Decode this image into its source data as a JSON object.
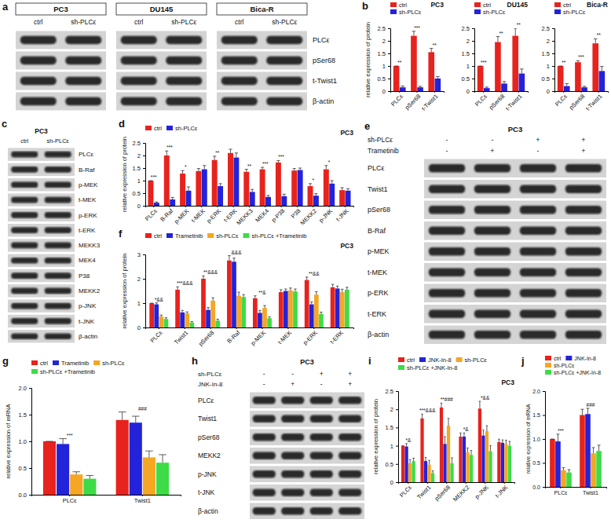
{
  "chart_data": [
    {
      "panel": "b",
      "type": "bar",
      "title": "PC3",
      "y_label": "relative expression of protein",
      "categories": [
        "PLCε",
        "pSer68",
        "t-Twist1"
      ],
      "series": [
        {
          "name": "ctrl",
          "color": "#e8221d",
          "values": [
            1.0,
            2.2,
            1.55
          ],
          "errors": [
            0,
            0.18,
            0.15
          ]
        },
        {
          "name": "sh-PLCε",
          "color": "#2323d9",
          "values": [
            0.15,
            0.15,
            0.5
          ],
          "errors": [
            0.05,
            0.04,
            0.08
          ]
        }
      ],
      "ylim": [
        0,
        2.5
      ],
      "yticks": [
        0,
        0.5,
        1,
        1.5,
        2,
        2.5
      ],
      "grid": false,
      "legend": "top-left",
      "annotations": [
        {
          "category": "PLCε",
          "text": "**"
        },
        {
          "category": "pSer68",
          "text": "***"
        },
        {
          "category": "t-Twist1",
          "text": "**"
        }
      ]
    },
    {
      "type": "bar",
      "title": "DU145",
      "categories": [
        "PLCε",
        "pSer68",
        "t-Twist1"
      ],
      "series": [
        {
          "name": "ctrl",
          "color": "#e8221d",
          "values": [
            1.0,
            1.95,
            2.2
          ],
          "errors": [
            0,
            0.22,
            0.3
          ]
        },
        {
          "name": "sh-PLCε",
          "color": "#2323d9",
          "values": [
            0.12,
            0.3,
            0.7
          ],
          "errors": [
            0.04,
            0.08,
            0.18
          ]
        }
      ],
      "ylim": [
        0,
        2.5
      ],
      "yticks": [
        0,
        0.5,
        1,
        1.5,
        2,
        2.5
      ],
      "grid": false,
      "legend": "top-left",
      "annotations": [
        {
          "category": "PLCε",
          "text": "***"
        },
        {
          "category": "pSer68",
          "text": "**"
        },
        {
          "category": "t-Twist1",
          "text": "**"
        }
      ]
    },
    {
      "type": "bar",
      "title": "Bica-R",
      "categories": [
        "PLCε",
        "pSer68",
        "t-Twist1"
      ],
      "series": [
        {
          "name": "ctrl",
          "color": "#e8221d",
          "values": [
            1.0,
            1.15,
            1.9
          ],
          "errors": [
            0,
            0.06,
            0.18
          ]
        },
        {
          "name": "sh-PLCε",
          "color": "#2323d9",
          "values": [
            0.2,
            0.15,
            0.8
          ],
          "errors": [
            0.1,
            0.04,
            0.18
          ]
        }
      ],
      "ylim": [
        0,
        2.5
      ],
      "yticks": [
        0,
        0.5,
        1,
        1.5,
        2,
        2.5
      ],
      "grid": false,
      "legend": "top-left",
      "annotations": [
        {
          "category": "PLCε",
          "text": "**"
        },
        {
          "category": "pSer68",
          "text": "***"
        },
        {
          "category": "t-Twist1",
          "text": "**"
        }
      ]
    },
    {
      "panel": "d",
      "type": "bar",
      "title": "PC3",
      "y_label": "relative expression of protein",
      "categories": [
        "PLCε",
        "B-Raf",
        "p-MEK",
        "t-MEK",
        "p-ERK",
        "t-ERK",
        "MEKK3",
        "MEK4",
        "p-P38",
        "P38",
        "MEKK2",
        "p-JNK",
        "t-JNK"
      ],
      "series": [
        {
          "name": "ctrl",
          "color": "#e8221d",
          "values": [
            1.0,
            2.0,
            1.28,
            1.38,
            1.82,
            2.1,
            1.35,
            1.45,
            1.72,
            1.4,
            0.78,
            1.45,
            0.62
          ],
          "errors": [
            0,
            0.18,
            0.12,
            0.1,
            0.15,
            0.15,
            0.1,
            0.08,
            0.08,
            0.08,
            0.1,
            0.15,
            0.1
          ]
        },
        {
          "name": "sh-PLCε",
          "color": "#2323d9",
          "values": [
            0.12,
            0.25,
            0.6,
            1.45,
            0.78,
            1.92,
            0.55,
            0.35,
            0.38,
            1.42,
            0.4,
            0.88,
            0.6
          ],
          "errors": [
            0.03,
            0.08,
            0.15,
            0.15,
            0.1,
            0.18,
            0.1,
            0.06,
            0.08,
            0.08,
            0.08,
            0.12,
            0.08
          ]
        }
      ],
      "ylim": [
        0,
        2.5
      ],
      "yticks": [
        0,
        0.5,
        1,
        1.5,
        2,
        2.5
      ],
      "grid": false,
      "legend": "top-left",
      "annotations": [
        {
          "category": "PLCε",
          "text": "***"
        },
        {
          "category": "B-Raf",
          "text": "***"
        },
        {
          "category": "p-MEK",
          "text": "*"
        },
        {
          "category": "p-ERK",
          "text": "**"
        },
        {
          "category": "MEKK3",
          "text": "**"
        },
        {
          "category": "MEK4",
          "text": "***"
        },
        {
          "category": "p-P38",
          "text": "***"
        },
        {
          "category": "MEKK2",
          "text": "*"
        },
        {
          "category": "p-JNK",
          "text": "*"
        }
      ]
    },
    {
      "panel": "f",
      "type": "bar",
      "title": "PC3",
      "y_label": "relative expression of protein",
      "categories": [
        "PLCε",
        "Twist1",
        "pSer68",
        "B-Raf",
        "p-MEK",
        "t-MEK",
        "p-ERK",
        "t-ERK"
      ],
      "series": [
        {
          "name": "ctrl",
          "color": "#e8221d",
          "values": [
            1.0,
            1.55,
            2.0,
            2.75,
            1.2,
            1.45,
            1.95,
            1.65
          ],
          "errors": [
            0,
            0.12,
            0.12,
            0.2,
            0.1,
            0.1,
            0.12,
            0.12
          ]
        },
        {
          "name": "Trametinib",
          "color": "#2323d9",
          "values": [
            0.95,
            0.62,
            0.72,
            2.7,
            0.6,
            1.5,
            0.95,
            1.6
          ],
          "errors": [
            0.06,
            0.08,
            0.1,
            0.15,
            0.1,
            0.08,
            0.1,
            0.1
          ]
        },
        {
          "name": "sh-PLCε",
          "color": "#f5a623",
          "values": [
            0.45,
            0.58,
            1.1,
            1.3,
            0.8,
            1.52,
            1.35,
            1.45
          ],
          "errors": [
            0.06,
            0.06,
            0.12,
            0.15,
            0.1,
            0.1,
            0.12,
            0.12
          ]
        },
        {
          "name": "sh-PLCε +Trametinib",
          "color": "#3ddc46",
          "values": [
            0.35,
            0.2,
            0.28,
            1.25,
            0.38,
            1.48,
            0.55,
            1.55
          ],
          "errors": [
            0.05,
            0.04,
            0.06,
            0.1,
            0.06,
            0.1,
            0.08,
            0.1
          ]
        }
      ],
      "ylim": [
        0,
        3
      ],
      "yticks": [
        0,
        1,
        2,
        3
      ],
      "grid": false,
      "legend": "top-left",
      "annotations": [
        {
          "category": "PLCε",
          "text": "*&&"
        },
        {
          "category": "Twist1",
          "text": "***&&&"
        },
        {
          "category": "pSer68",
          "text": "**&&&"
        },
        {
          "category": "B-Raf",
          "text": "&&&"
        },
        {
          "category": "p-MEK",
          "text": "**&"
        },
        {
          "category": "p-ERK",
          "text": "**&&"
        }
      ]
    },
    {
      "panel": "g",
      "type": "bar",
      "y_label": "relative expression of mRNA",
      "categories": [
        "PLCε",
        "Twist1"
      ],
      "series": [
        {
          "name": "ctrl",
          "color": "#e8221d",
          "values": [
            1.0,
            1.4
          ],
          "errors": [
            0,
            0.15
          ]
        },
        {
          "name": "Trametinib",
          "color": "#2323d9",
          "values": [
            0.95,
            1.35
          ],
          "errors": [
            0.1,
            0.12
          ]
        },
        {
          "name": "sh-PLCε",
          "color": "#f5a623",
          "values": [
            0.38,
            0.7
          ],
          "errors": [
            0.05,
            0.12
          ]
        },
        {
          "name": "sh-PLCε +Trametinib",
          "color": "#3ddc46",
          "values": [
            0.3,
            0.6
          ],
          "errors": [
            0.06,
            0.15
          ]
        }
      ],
      "ylim": [
        0,
        2
      ],
      "yticks": [
        {
          "value": 0,
          "label": "0.0"
        },
        {
          "value": 0.5,
          "label": "0.5"
        },
        {
          "value": 1,
          "label": "1.0"
        },
        {
          "value": 1.5,
          "label": "1.5"
        },
        {
          "value": 2,
          "label": "2.0"
        }
      ],
      "grid": false,
      "legend": "top-left",
      "annotations": [
        {
          "category": "PLCε",
          "text": "***"
        },
        {
          "category": "Twist1",
          "text": "###"
        }
      ]
    },
    {
      "panel": "i",
      "type": "bar",
      "title": "PC3",
      "y_label": "relative expression of protein",
      "categories": [
        "PLCε",
        "Twist1",
        "pSer68",
        "MEKK2",
        "p-JNK",
        "t-JNK"
      ],
      "series": [
        {
          "name": "ctrl",
          "color": "#e8221d",
          "values": [
            1.0,
            1.75,
            2.05,
            1.25,
            2.02,
            1.1
          ],
          "errors": [
            0,
            0.12,
            0.12,
            0.1,
            0.2,
            0.08
          ]
        },
        {
          "name": "JNK-In-8",
          "color": "#2323d9",
          "values": [
            0.98,
            0.58,
            1.05,
            1.25,
            1.28,
            1.08
          ],
          "errors": [
            0.08,
            0.1,
            0.2,
            0.1,
            0.15,
            0.08
          ]
        },
        {
          "name": "sh-PLCε",
          "color": "#f5a623",
          "values": [
            0.52,
            0.48,
            1.55,
            0.82,
            1.4,
            1.05
          ],
          "errors": [
            0.1,
            0.12,
            0.2,
            0.12,
            0.15,
            0.1
          ]
        },
        {
          "name": "sh-PLCε +JNK-In-8",
          "color": "#3ddc46",
          "values": [
            0.58,
            0.25,
            0.52,
            0.75,
            0.85,
            1.0
          ],
          "errors": [
            0.08,
            0.06,
            0.15,
            0.12,
            0.15,
            0.12
          ]
        }
      ],
      "ylim": [
        0,
        2.5
      ],
      "yticks": [
        0,
        0.5,
        1,
        1.5,
        2,
        2.5
      ],
      "grid": false,
      "legend": "top-left",
      "annotations": [
        {
          "category": "PLCε",
          "text": "*&"
        },
        {
          "category": "Twist1",
          "text": "***&&&"
        },
        {
          "category": "pSer68",
          "text": "**###"
        },
        {
          "category": "MEKK2",
          "text": "*&"
        },
        {
          "category": "p-JNK",
          "text": "*&&"
        }
      ]
    },
    {
      "panel": "j",
      "type": "bar",
      "y_label": "relative expression of mRNA",
      "categories": [
        "PLCε",
        "Twist1"
      ],
      "series": [
        {
          "name": "ctrl",
          "color": "#e8221d",
          "values": [
            1.0,
            1.5
          ],
          "errors": [
            0,
            0.12
          ]
        },
        {
          "name": "JNK-In-8",
          "color": "#2323d9",
          "values": [
            0.95,
            1.52
          ],
          "errors": [
            0.15,
            0.12
          ]
        },
        {
          "name": "sh-PLCε",
          "color": "#f5a623",
          "values": [
            0.35,
            0.7
          ],
          "errors": [
            0.05,
            0.12
          ]
        },
        {
          "name": "sh-PLCε +JNK-In-8",
          "color": "#3ddc46",
          "values": [
            0.3,
            0.75
          ],
          "errors": [
            0.06,
            0.12
          ]
        }
      ],
      "ylim": [
        0,
        2
      ],
      "yticks": [
        {
          "value": 0,
          "label": "0.0"
        },
        {
          "value": 0.5,
          "label": "0.5"
        },
        {
          "value": 1,
          "label": "1.0"
        },
        {
          "value": 1.5,
          "label": "1.5"
        },
        {
          "value": 2,
          "label": "2.0"
        }
      ],
      "grid": false,
      "legend": "top-left",
      "annotations": [
        {
          "category": "PLCε",
          "text": "***"
        },
        {
          "category": "Twist1",
          "text": "###"
        }
      ]
    }
  ],
  "blots": [
    {
      "panel": "a",
      "groups": [
        {
          "title": "PC3",
          "lanes": [
            "ctrl",
            "sh-PLCε"
          ]
        },
        {
          "title": "DU145",
          "lanes": [
            "ctrl",
            "sh-PLCε"
          ]
        },
        {
          "title": "Bica-R",
          "lanes": [
            "ctrl",
            "sh-PLCε"
          ]
        }
      ],
      "rows": [
        "PLCε",
        "pSer68",
        "t-Twist1",
        "β-actin"
      ]
    },
    {
      "panel": "c",
      "groups": [
        {
          "title": "PC3",
          "lanes": [
            "ctrl",
            "sh-PLCε"
          ]
        }
      ],
      "rows": [
        "PLCε",
        "B-Raf",
        "p-MEK",
        "t-MEK",
        "p-ERK",
        "t-ERK",
        "MEKK3",
        "MEK4",
        "P38",
        "MEKK2",
        "p-JNK",
        "t-JNK",
        "β-actin"
      ]
    },
    {
      "panel": "e",
      "title": "PC3",
      "conditions": [
        {
          "name": "sh-PLCε",
          "states": [
            "-",
            "-",
            "+",
            "+"
          ]
        },
        {
          "name": "Trametinib",
          "states": [
            "-",
            "+",
            "-",
            "+"
          ]
        }
      ],
      "rows": [
        "PLCε",
        "Twist1",
        "pSer68",
        "B-Raf",
        "p-MEK",
        "t-MEK",
        "p-ERK",
        "t-ERK",
        "β-actin"
      ]
    },
    {
      "panel": "h",
      "title": "PC3",
      "conditions": [
        {
          "name": "sh-PLCε",
          "states": [
            "-",
            "-",
            "+",
            "+"
          ]
        },
        {
          "name": "JNK-In-8",
          "states": [
            "-",
            "+",
            "-",
            "+"
          ]
        }
      ],
      "rows": [
        "PLCε",
        "Twist1",
        "pSer68",
        "MEKK2",
        "p-JNK",
        "t-JNK",
        "β-actin"
      ]
    }
  ]
}
